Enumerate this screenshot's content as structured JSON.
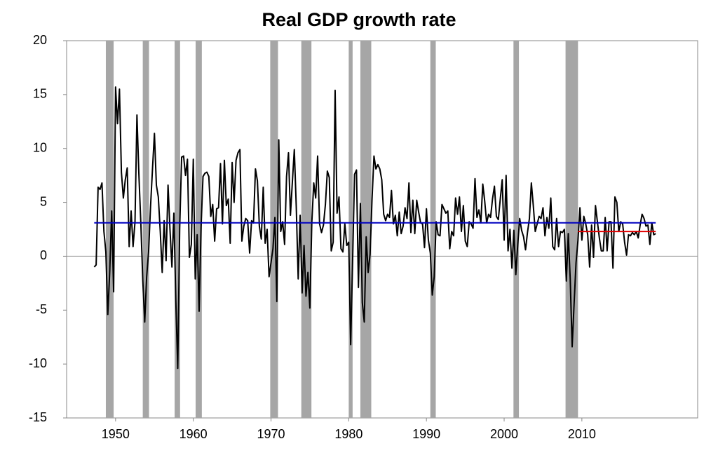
{
  "chart_data": {
    "type": "line",
    "title": "Real GDP growth rate",
    "xlim": [
      1943.7,
      2024.9
    ],
    "xticks": [
      1950,
      1960,
      1970,
      1980,
      1990,
      2000,
      2010
    ],
    "ylim": [
      -15,
      20
    ],
    "yticks": [
      -15,
      -10,
      -5,
      0,
      5,
      10,
      15,
      20
    ],
    "shaded_periods": {
      "color": "#a6a6a6",
      "ranges": [
        [
          1948.75,
          1949.75
        ],
        [
          1953.5,
          1954.3
        ],
        [
          1957.6,
          1958.3
        ],
        [
          1960.3,
          1961.1
        ],
        [
          1969.9,
          1970.9
        ],
        [
          1973.9,
          1975.2
        ],
        [
          1980.0,
          1980.5
        ],
        [
          1981.5,
          1982.9
        ],
        [
          1990.5,
          1991.2
        ],
        [
          2001.2,
          2001.9
        ],
        [
          2007.9,
          2009.5
        ]
      ]
    },
    "reference_lines": [
      {
        "color": "#0000c0",
        "value": 3.1,
        "from": 1947.25,
        "to": 2019.5
      },
      {
        "color": "#e00000",
        "value": 2.3,
        "from": 2009.5,
        "to": 2019.5
      }
    ],
    "series": [
      {
        "color": "#000000",
        "x": [
          1947.25,
          1947.5,
          1947.75,
          1948,
          1948.25,
          1948.5,
          1948.75,
          1949,
          1949.25,
          1949.5,
          1949.75,
          1950,
          1950.25,
          1950.5,
          1950.75,
          1951,
          1951.25,
          1951.5,
          1951.75,
          1952,
          1952.25,
          1952.5,
          1952.75,
          1953,
          1953.25,
          1953.5,
          1953.75,
          1954,
          1954.25,
          1954.5,
          1954.75,
          1955,
          1955.25,
          1955.5,
          1955.75,
          1956,
          1956.25,
          1956.5,
          1956.75,
          1957,
          1957.25,
          1957.5,
          1957.75,
          1958,
          1958.25,
          1958.5,
          1958.75,
          1959,
          1959.25,
          1959.5,
          1959.75,
          1960,
          1960.25,
          1960.5,
          1960.75,
          1961,
          1961.25,
          1961.5,
          1961.75,
          1962,
          1962.25,
          1962.5,
          1962.75,
          1963,
          1963.25,
          1963.5,
          1963.75,
          1964,
          1964.25,
          1964.5,
          1964.75,
          1965,
          1965.25,
          1965.5,
          1965.75,
          1966,
          1966.25,
          1966.5,
          1966.75,
          1967,
          1967.25,
          1967.5,
          1967.75,
          1968,
          1968.25,
          1968.5,
          1968.75,
          1969,
          1969.25,
          1969.5,
          1969.75,
          1970,
          1970.25,
          1970.5,
          1970.75,
          1971,
          1971.25,
          1971.5,
          1971.75,
          1972,
          1972.25,
          1972.5,
          1972.75,
          1973,
          1973.25,
          1973.5,
          1973.75,
          1974,
          1974.25,
          1974.5,
          1974.75,
          1975,
          1975.25,
          1975.5,
          1975.75,
          1976,
          1976.25,
          1976.5,
          1976.75,
          1977,
          1977.25,
          1977.5,
          1977.75,
          1978,
          1978.25,
          1978.5,
          1978.75,
          1979,
          1979.25,
          1979.5,
          1979.75,
          1980,
          1980.25,
          1980.5,
          1980.75,
          1981,
          1981.25,
          1981.5,
          1981.75,
          1982,
          1982.25,
          1982.5,
          1982.75,
          1983,
          1983.25,
          1983.5,
          1983.75,
          1984,
          1984.25,
          1984.5,
          1984.75,
          1985,
          1985.25,
          1985.5,
          1985.75,
          1986,
          1986.25,
          1986.5,
          1986.75,
          1987,
          1987.25,
          1987.5,
          1987.75,
          1988,
          1988.25,
          1988.5,
          1988.75,
          1989,
          1989.25,
          1989.5,
          1989.75,
          1990,
          1990.25,
          1990.5,
          1990.75,
          1991,
          1991.25,
          1991.5,
          1991.75,
          1992,
          1992.25,
          1992.5,
          1992.75,
          1993,
          1993.25,
          1993.5,
          1993.75,
          1994,
          1994.25,
          1994.5,
          1994.75,
          1995,
          1995.25,
          1995.5,
          1995.75,
          1996,
          1996.25,
          1996.5,
          1996.75,
          1997,
          1997.25,
          1997.5,
          1997.75,
          1998,
          1998.25,
          1998.5,
          1998.75,
          1999,
          1999.25,
          1999.5,
          1999.75,
          2000,
          2000.25,
          2000.5,
          2000.75,
          2001,
          2001.25,
          2001.5,
          2001.75,
          2002,
          2002.25,
          2002.5,
          2002.75,
          2003,
          2003.25,
          2003.5,
          2003.75,
          2004,
          2004.25,
          2004.5,
          2004.75,
          2005,
          2005.25,
          2005.5,
          2005.75,
          2006,
          2006.25,
          2006.5,
          2006.75,
          2007,
          2007.25,
          2007.5,
          2007.75,
          2008,
          2008.25,
          2008.5,
          2008.75,
          2009,
          2009.25,
          2009.5,
          2009.75,
          2010,
          2010.25,
          2010.5,
          2010.75,
          2011,
          2011.25,
          2011.5,
          2011.75,
          2012,
          2012.25,
          2012.5,
          2012.75,
          2013,
          2013.25,
          2013.5,
          2013.75,
          2014,
          2014.25,
          2014.5,
          2014.75,
          2015,
          2015.25,
          2015.5,
          2015.75,
          2016,
          2016.25,
          2016.5,
          2016.75,
          2017,
          2017.25,
          2017.5,
          2017.75,
          2018,
          2018.25,
          2018.5,
          2018.75,
          2019,
          2019.25,
          2019.5
        ],
        "values": [
          -1.0,
          -0.8,
          6.4,
          6.2,
          6.8,
          2.3,
          0.4,
          -5.4,
          -1.4,
          4.2,
          -3.3,
          15.7,
          12.3,
          15.5,
          7.8,
          5.4,
          7.1,
          8.2,
          0.9,
          4.2,
          0.9,
          3.2,
          13.1,
          7.6,
          3.1,
          -2.2,
          -6.1,
          -1.9,
          0.4,
          4.6,
          8.1,
          11.4,
          6.6,
          5.5,
          2.3,
          -1.5,
          3.3,
          -0.4,
          6.6,
          2.5,
          -1.0,
          4.0,
          -4.1,
          -10.4,
          2.6,
          9.2,
          9.3,
          7.5,
          9.0,
          -0.1,
          1.1,
          9.0,
          -2.1,
          2.0,
          -5.1,
          2.7,
          7.4,
          7.7,
          7.8,
          7.4,
          3.7,
          4.8,
          1.4,
          4.4,
          4.5,
          8.6,
          3.0,
          8.9,
          4.7,
          5.3,
          1.2,
          8.7,
          5.0,
          8.9,
          9.6,
          9.9,
          1.4,
          2.8,
          3.5,
          3.3,
          0.3,
          3.3,
          3.1,
          8.1,
          7.0,
          2.8,
          1.6,
          6.4,
          1.2,
          2.5,
          -1.9,
          -0.6,
          0.7,
          3.6,
          -4.2,
          10.8,
          2.3,
          3.2,
          1.1,
          7.4,
          9.6,
          3.8,
          6.9,
          9.9,
          4.6,
          -2.1,
          3.8,
          -3.4,
          1.0,
          -3.7,
          -1.5,
          -4.8,
          3.1,
          6.8,
          5.4,
          9.3,
          3.0,
          2.2,
          2.9,
          4.8,
          7.9,
          7.3,
          0.5,
          1.3,
          15.4,
          4.0,
          5.5,
          0.7,
          0.4,
          3.0,
          1.0,
          1.3,
          -8.2,
          -0.5,
          7.6,
          8.0,
          -2.9,
          4.9,
          -4.3,
          -6.1,
          1.8,
          -1.5,
          0.2,
          5.3,
          9.3,
          8.1,
          8.5,
          8.1,
          7.1,
          3.9,
          3.3,
          3.9,
          3.6,
          6.1,
          3.0,
          3.8,
          1.9,
          4.1,
          2.1,
          2.8,
          4.5,
          3.5,
          6.8,
          2.2,
          5.2,
          2.1,
          5.2,
          4.1,
          3.1,
          3.0,
          0.8,
          4.4,
          1.5,
          0.3,
          -3.6,
          -1.9,
          3.2,
          2.0,
          1.9,
          4.8,
          4.4,
          4.0,
          4.2,
          0.7,
          2.3,
          1.9,
          5.4,
          3.9,
          5.5,
          2.3,
          4.7,
          1.4,
          0.9,
          3.2,
          3.0,
          2.6,
          7.2,
          3.6,
          4.3,
          3.1,
          6.7,
          5.1,
          3.1,
          3.9,
          3.6,
          5.3,
          6.5,
          3.7,
          3.4,
          5.3,
          7.1,
          1.5,
          7.5,
          0.5,
          2.5,
          -1.1,
          2.4,
          -1.7,
          1.1,
          3.5,
          2.4,
          1.8,
          0.6,
          2.2,
          3.5,
          6.8,
          4.7,
          2.3,
          3.0,
          3.7,
          3.5,
          4.5,
          1.9,
          3.6,
          2.6,
          5.4,
          0.9,
          0.6,
          3.5,
          0.9,
          2.3,
          2.2,
          2.5,
          -2.3,
          2.1,
          -2.1,
          -8.4,
          -4.4,
          -0.6,
          1.5,
          4.5,
          1.5,
          3.7,
          3.0,
          2.0,
          -1.0,
          2.9,
          -0.1,
          4.7,
          3.2,
          1.7,
          0.5,
          0.5,
          3.6,
          0.5,
          3.2,
          3.2,
          -1.1,
          5.5,
          5.0,
          2.3,
          3.2,
          3.0,
          1.3,
          0.1,
          2.0,
          1.9,
          2.2,
          2.0,
          2.3,
          1.7,
          2.9,
          3.9,
          3.5,
          2.8,
          2.9,
          1.1,
          3.1,
          2.0,
          2.1
        ]
      }
    ]
  }
}
